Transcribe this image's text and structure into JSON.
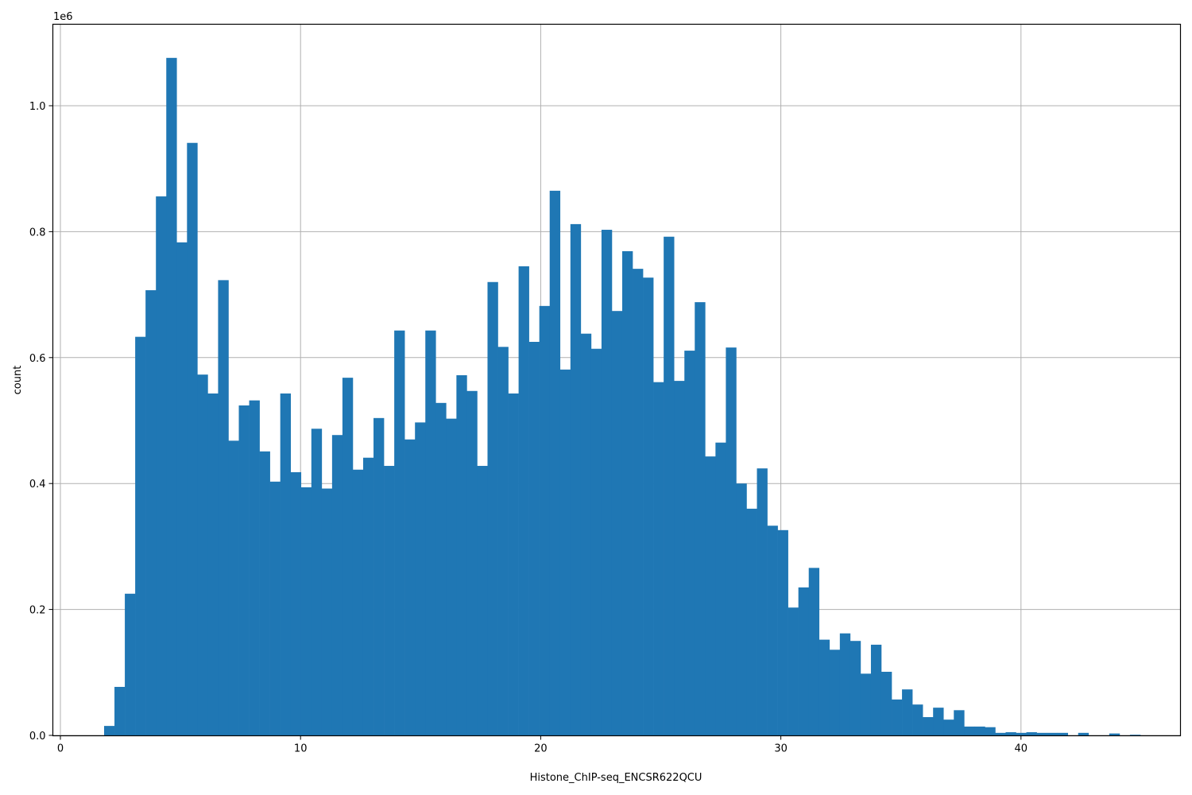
{
  "chart_data": {
    "type": "bar",
    "subtype": "histogram",
    "title": "",
    "xlabel": "Histone_ChIP-seq_ENCSR622QCU",
    "ylabel": "count",
    "y_offset_label": "1e6",
    "xlim": [
      -0.3,
      46.6
    ],
    "ylim": [
      0,
      1130000
    ],
    "grid": true,
    "legend": null,
    "color": "#1f77b4",
    "x_ticks": [
      0,
      10,
      20,
      30,
      40
    ],
    "y_ticks": [
      0.0,
      0.2,
      0.4,
      0.6,
      0.8,
      1.0
    ],
    "y_tick_labels": [
      "0.0",
      "0.2",
      "0.4",
      "0.6",
      "0.8",
      "1.0"
    ],
    "bin_start": 1.82,
    "bin_width": 0.4315,
    "values": [
      15000,
      77000,
      225000,
      633000,
      707000,
      856000,
      1076000,
      783000,
      941000,
      573000,
      543000,
      723000,
      468000,
      524000,
      532000,
      451000,
      403000,
      543000,
      418000,
      394000,
      487000,
      392000,
      477000,
      568000,
      422000,
      441000,
      504000,
      428000,
      643000,
      470000,
      497000,
      643000,
      528000,
      503000,
      572000,
      547000,
      428000,
      720000,
      617000,
      543000,
      745000,
      625000,
      682000,
      865000,
      581000,
      812000,
      638000,
      614000,
      803000,
      674000,
      769000,
      741000,
      727000,
      561000,
      792000,
      563000,
      611000,
      688000,
      443000,
      465000,
      616000,
      400000,
      360000,
      424000,
      333000,
      326000,
      203000,
      235000,
      266000,
      152000,
      136000,
      162000,
      150000,
      98000,
      144000,
      101000,
      57000,
      73000,
      49000,
      29000,
      44000,
      25000,
      40000,
      14000,
      14000,
      13000,
      4000,
      5000,
      4000,
      5000,
      4000,
      4000,
      4000,
      0,
      4000,
      0,
      0,
      3000,
      0,
      1000
    ]
  }
}
